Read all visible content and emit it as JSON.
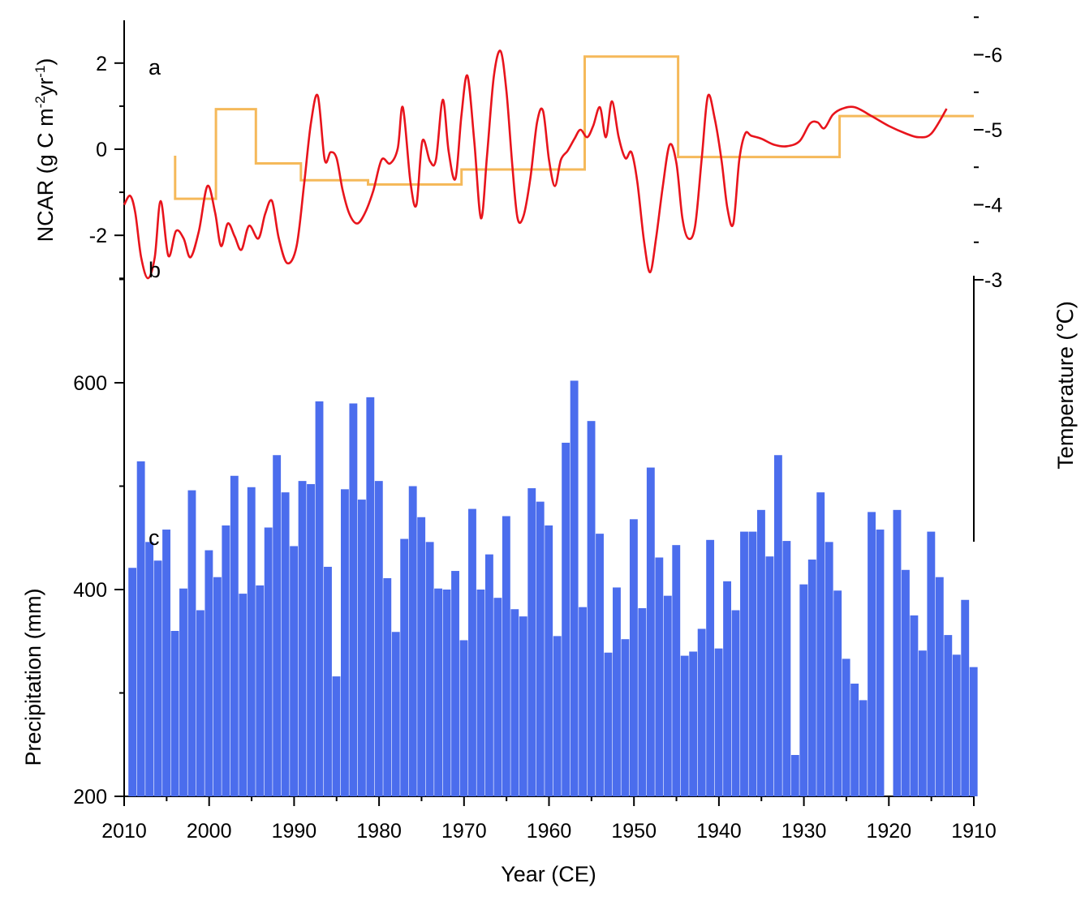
{
  "chart_data": {
    "type": "multi-panel",
    "x": {
      "label": "Year (CE)",
      "range": [
        2010,
        1910
      ],
      "reversed": true,
      "ticks": [
        2010,
        2000,
        1990,
        1980,
        1970,
        1960,
        1950,
        1940,
        1930,
        1920,
        1910
      ]
    },
    "panels": [
      {
        "label": "a",
        "type": "step",
        "color": "#f5b95a",
        "ylabel_prefix": "NCAR (g C m",
        "ylabel_sup1": "-2",
        "ylabel_mid": "yr",
        "ylabel_sup2": "-1",
        "ylabel_suffix": ")",
        "ylim": [
          -3,
          3
        ],
        "yticks": [
          -2,
          0,
          2
        ],
        "steps": [
          {
            "x0": 2004,
            "x1": 1999.2,
            "y": -1.15
          },
          {
            "x0": 1999.2,
            "x1": 1994.5,
            "y": 0.93
          },
          {
            "x0": 1994.5,
            "x1": 1989.2,
            "y": -0.33
          },
          {
            "x0": 1989.2,
            "x1": 1981.3,
            "y": -0.72
          },
          {
            "x0": 1981.3,
            "x1": 1970.3,
            "y": -0.82
          },
          {
            "x0": 1970.3,
            "x1": 1955.8,
            "y": -0.47
          },
          {
            "x0": 1955.8,
            "x1": 1944.8,
            "y": 2.15
          },
          {
            "x0": 1944.8,
            "x1": 1925.8,
            "y": -0.18
          },
          {
            "x0": 1925.8,
            "x1": 1910,
            "y": 0.77
          }
        ],
        "first_y_start": -0.15
      },
      {
        "label": "b",
        "type": "line",
        "color": "#e8141c",
        "ylabel": "Temperature (℃)",
        "ylim": [
          -6.5,
          -3
        ],
        "yticks": [
          -3,
          -4,
          -5,
          -6
        ],
        "x": [
          2010,
          2009.3,
          2008.7,
          2008,
          2007.2,
          2006.4,
          2005.7,
          2004.8,
          2003.9,
          2003,
          2002.2,
          2001.2,
          2000.2,
          1999.3,
          1998.6,
          1997.8,
          1997,
          1996.2,
          1995.3,
          1994.2,
          1993.4,
          1992.6,
          1991.8,
          1990.8,
          1989.7,
          1988.8,
          1988,
          1987.2,
          1986.4,
          1985.7,
          1985,
          1984.3,
          1983.5,
          1982.6,
          1981.7,
          1980.7,
          1979.7,
          1978.7,
          1977.8,
          1977.2,
          1976.3,
          1975.6,
          1974.9,
          1974,
          1973.3,
          1972.5,
          1971.8,
          1971,
          1970.3,
          1969.6,
          1968.8,
          1968,
          1967.3,
          1966.5,
          1965.7,
          1965,
          1964.3,
          1963.7,
          1963,
          1962.2,
          1961.4,
          1960.7,
          1960,
          1959.3,
          1958.6,
          1957.8,
          1957,
          1956.3,
          1955.5,
          1954.8,
          1954,
          1953.3,
          1952.6,
          1951.8,
          1951,
          1950.3,
          1949.6,
          1948.8,
          1948.1,
          1947.4,
          1946.6,
          1945.8,
          1945,
          1944.3,
          1943.6,
          1942.8,
          1942,
          1941.3,
          1940.5,
          1939.7,
          1939,
          1938.3,
          1937.6,
          1936.9,
          1936.2,
          1935,
          1933.5,
          1932,
          1930.5,
          1929.3,
          1928.4,
          1927.6,
          1926.6,
          1925.5,
          1924,
          1922,
          1920,
          1918,
          1916.5,
          1915,
          1913.2
        ],
        "y": [
          -4.0,
          -4.12,
          -3.9,
          -3.3,
          -3.02,
          -3.3,
          -4.05,
          -3.32,
          -3.65,
          -3.55,
          -3.3,
          -3.65,
          -4.25,
          -3.9,
          -3.45,
          -3.75,
          -3.58,
          -3.4,
          -3.72,
          -3.55,
          -3.88,
          -4.05,
          -3.55,
          -3.22,
          -3.45,
          -4.3,
          -5.1,
          -5.45,
          -4.6,
          -4.7,
          -4.62,
          -4.2,
          -3.88,
          -3.75,
          -3.88,
          -4.18,
          -4.6,
          -4.55,
          -4.75,
          -5.3,
          -4.3,
          -4.0,
          -4.85,
          -4.58,
          -4.6,
          -5.4,
          -4.7,
          -4.35,
          -5.2,
          -5.72,
          -4.85,
          -3.82,
          -4.65,
          -5.7,
          -6.05,
          -5.5,
          -4.5,
          -3.82,
          -3.85,
          -4.35,
          -5.1,
          -5.25,
          -4.6,
          -4.25,
          -4.6,
          -4.72,
          -4.88,
          -5.0,
          -4.9,
          -5.05,
          -5.3,
          -4.9,
          -5.38,
          -4.9,
          -4.62,
          -4.7,
          -4.3,
          -3.5,
          -3.1,
          -3.55,
          -4.25,
          -4.8,
          -4.55,
          -3.82,
          -3.55,
          -3.72,
          -4.65,
          -5.45,
          -5.15,
          -4.6,
          -3.95,
          -3.75,
          -4.6,
          -4.95,
          -4.92,
          -4.88,
          -4.8,
          -4.78,
          -4.85,
          -5.08,
          -5.1,
          -5.02,
          -5.2,
          -5.28,
          -5.3,
          -5.18,
          -5.05,
          -4.95,
          -4.9,
          -4.95,
          -5.28
        ]
      },
      {
        "label": "c",
        "type": "bar",
        "color": "#4b6ded",
        "ylabel": "Precipitation (mm)",
        "ylim": [
          200,
          700
        ],
        "yticks": [
          200,
          400,
          600
        ],
        "years": [
          2009,
          2008,
          2007,
          2006,
          2005,
          2004,
          2003,
          2002,
          2001,
          2000,
          1999,
          1998,
          1997,
          1996,
          1995,
          1994,
          1993,
          1992,
          1991,
          1990,
          1989,
          1988,
          1987,
          1986,
          1985,
          1984,
          1983,
          1982,
          1981,
          1980,
          1979,
          1978,
          1977,
          1976,
          1975,
          1974,
          1973,
          1972,
          1971,
          1970,
          1969,
          1968,
          1967,
          1966,
          1965,
          1964,
          1963,
          1962,
          1961,
          1960,
          1959,
          1958,
          1957,
          1956,
          1955,
          1954,
          1953,
          1952,
          1951,
          1950,
          1949,
          1948,
          1947,
          1946,
          1945,
          1944,
          1943,
          1942,
          1941,
          1940,
          1939,
          1938,
          1937,
          1936,
          1935,
          1934,
          1933,
          1932,
          1931,
          1930,
          1929,
          1928,
          1927,
          1926,
          1925,
          1924,
          1923,
          1922,
          1921,
          1920,
          1919,
          1918,
          1917,
          1916,
          1915,
          1914,
          1913,
          1912,
          1911,
          1910
        ],
        "values": [
          421,
          524,
          446,
          428,
          458,
          360,
          401,
          496,
          380,
          438,
          412,
          462,
          510,
          396,
          499,
          404,
          460,
          530,
          494,
          442,
          505,
          502,
          582,
          422,
          316,
          497,
          580,
          487,
          586,
          505,
          411,
          359,
          449,
          500,
          470,
          446,
          401,
          400,
          418,
          351,
          478,
          400,
          434,
          392,
          471,
          381,
          374,
          498,
          485,
          462,
          355,
          542,
          602,
          383,
          563,
          454,
          339,
          402,
          352,
          468,
          382,
          518,
          431,
          394,
          443,
          336,
          340,
          362,
          448,
          343,
          408,
          380,
          456,
          456,
          477,
          432,
          530,
          447,
          240,
          405,
          429,
          494,
          446,
          399,
          333,
          309,
          293,
          475,
          458,
          200,
          477,
          419,
          375,
          341,
          456,
          412,
          356,
          337,
          390,
          325
        ]
      }
    ]
  }
}
